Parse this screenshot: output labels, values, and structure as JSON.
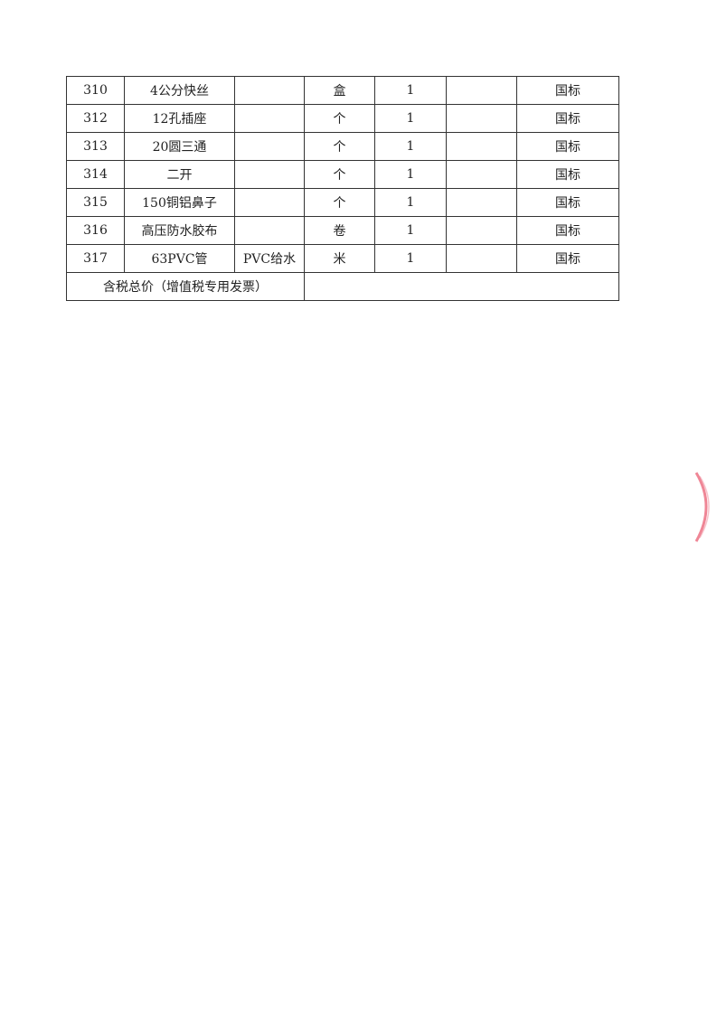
{
  "rows": [
    {
      "no": "310",
      "name": "4公分快丝",
      "spec": "",
      "unit": "盒",
      "qty": "1",
      "price": "",
      "standard": "国标"
    },
    {
      "no": "312",
      "name": "12孔插座",
      "spec": "",
      "unit": "个",
      "qty": "1",
      "price": "",
      "standard": "国标"
    },
    {
      "no": "313",
      "name": "20圆三通",
      "spec": "",
      "unit": "个",
      "qty": "1",
      "price": "",
      "standard": "国标"
    },
    {
      "no": "314",
      "name": "二开",
      "spec": "",
      "unit": "个",
      "qty": "1",
      "price": "",
      "standard": "国标"
    },
    {
      "no": "315",
      "name": "150铜铝鼻子",
      "spec": "",
      "unit": "个",
      "qty": "1",
      "price": "",
      "standard": "国标"
    },
    {
      "no": "316",
      "name": "高压防水胶布",
      "spec": "",
      "unit": "卷",
      "qty": "1",
      "price": "",
      "standard": "国标"
    },
    {
      "no": "317",
      "name": "63PVC管",
      "spec": "PVC给水",
      "unit": "米",
      "qty": "1",
      "price": "",
      "standard": "国标"
    }
  ],
  "total": {
    "label": "含税总价（增值税专用发票）",
    "value": ""
  },
  "stamp_color": "#e8536a"
}
